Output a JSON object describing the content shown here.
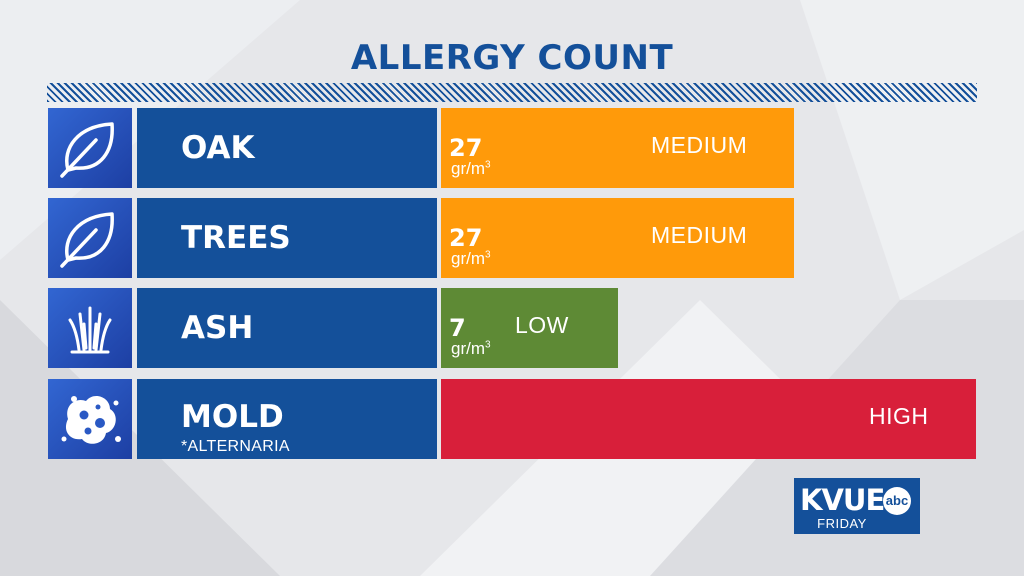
{
  "title": "ALLERGY COUNT",
  "colors": {
    "navy": "#14509a",
    "icon_blue": "#2a59c4",
    "medium": "#ff9a0a",
    "low": "#5e8a35",
    "high": "#d81f3a"
  },
  "rows": [
    {
      "icon": "leaf-icon",
      "name": "OAK",
      "sub": "",
      "count": "27",
      "unit": "gr/m",
      "unit_sup": "3",
      "level": "MEDIUM",
      "bar_fraction": 0.66
    },
    {
      "icon": "leaf-icon",
      "name": "TREES",
      "sub": "",
      "count": "27",
      "unit": "gr/m",
      "unit_sup": "3",
      "level": "MEDIUM",
      "bar_fraction": 0.66
    },
    {
      "icon": "grass-icon",
      "name": "ASH",
      "sub": "",
      "count": "7",
      "unit": "gr/m",
      "unit_sup": "3",
      "level": "LOW",
      "bar_fraction": 0.33
    },
    {
      "icon": "mold-icon",
      "name": "MOLD",
      "sub": "*ALTERNARIA",
      "count": "",
      "unit": "",
      "unit_sup": "",
      "level": "HIGH",
      "bar_fraction": 1.0
    }
  ],
  "logo": {
    "brand": "KVUE",
    "network": "abc",
    "day": "FRIDAY"
  }
}
